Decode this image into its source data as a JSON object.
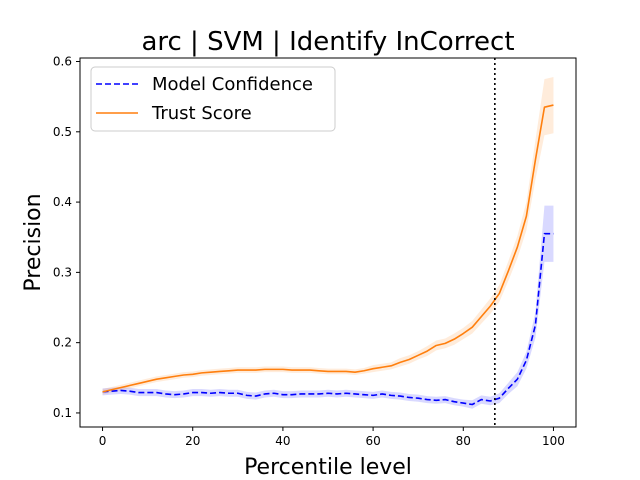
{
  "chart_data": {
    "type": "line",
    "title": "arc | SVM | Identify InCorrect",
    "xlabel": "Percentile level",
    "ylabel": "Precision",
    "xlim": [
      -5,
      105
    ],
    "ylim": [
      0.08,
      0.605
    ],
    "xticks": [
      0,
      20,
      40,
      60,
      80,
      100
    ],
    "yticks": [
      0.1,
      0.2,
      0.3,
      0.4,
      0.5,
      0.6
    ],
    "xtick_labels": [
      "0",
      "20",
      "40",
      "60",
      "80",
      "100"
    ],
    "ytick_labels": [
      "0.1",
      "0.2",
      "0.3",
      "0.4",
      "0.5",
      "0.6"
    ],
    "grid": false,
    "legend_position": "top-left",
    "vline": {
      "x": 87,
      "style": "dotted",
      "color": "#000000"
    },
    "x": [
      0,
      2,
      4,
      6,
      8,
      10,
      12,
      14,
      16,
      18,
      20,
      22,
      24,
      26,
      28,
      30,
      32,
      34,
      36,
      38,
      40,
      42,
      44,
      46,
      48,
      50,
      52,
      54,
      56,
      58,
      60,
      62,
      64,
      66,
      68,
      70,
      72,
      74,
      76,
      78,
      80,
      82,
      84,
      86,
      88,
      90,
      92,
      94,
      96,
      98,
      100
    ],
    "series": [
      {
        "name": "Model Confidence",
        "color": "#0000ff",
        "style": "dashed",
        "values": [
          0.13,
          0.131,
          0.132,
          0.131,
          0.129,
          0.129,
          0.129,
          0.127,
          0.126,
          0.127,
          0.129,
          0.129,
          0.128,
          0.129,
          0.128,
          0.128,
          0.125,
          0.124,
          0.127,
          0.128,
          0.126,
          0.126,
          0.127,
          0.127,
          0.127,
          0.128,
          0.127,
          0.128,
          0.127,
          0.126,
          0.125,
          0.127,
          0.125,
          0.124,
          0.122,
          0.121,
          0.119,
          0.118,
          0.119,
          0.116,
          0.114,
          0.112,
          0.119,
          0.117,
          0.121,
          0.135,
          0.148,
          0.175,
          0.225,
          0.355,
          0.355
        ],
        "band": [
          0.005,
          0.005,
          0.005,
          0.005,
          0.005,
          0.005,
          0.005,
          0.005,
          0.005,
          0.005,
          0.005,
          0.005,
          0.005,
          0.005,
          0.005,
          0.005,
          0.005,
          0.005,
          0.005,
          0.005,
          0.005,
          0.005,
          0.005,
          0.005,
          0.005,
          0.005,
          0.005,
          0.005,
          0.005,
          0.005,
          0.005,
          0.005,
          0.005,
          0.005,
          0.005,
          0.005,
          0.005,
          0.005,
          0.005,
          0.005,
          0.005,
          0.006,
          0.006,
          0.006,
          0.007,
          0.008,
          0.01,
          0.012,
          0.018,
          0.04,
          0.04
        ]
      },
      {
        "name": "Trust Score",
        "color": "#ff7f0e",
        "style": "solid",
        "values": [
          0.13,
          0.133,
          0.136,
          0.139,
          0.142,
          0.145,
          0.148,
          0.15,
          0.152,
          0.154,
          0.155,
          0.157,
          0.158,
          0.159,
          0.16,
          0.161,
          0.161,
          0.161,
          0.162,
          0.162,
          0.162,
          0.161,
          0.161,
          0.161,
          0.16,
          0.159,
          0.159,
          0.159,
          0.158,
          0.16,
          0.163,
          0.165,
          0.167,
          0.172,
          0.176,
          0.182,
          0.188,
          0.196,
          0.199,
          0.205,
          0.213,
          0.222,
          0.237,
          0.252,
          0.27,
          0.302,
          0.336,
          0.38,
          0.46,
          0.535,
          0.538
        ],
        "band": [
          0.004,
          0.004,
          0.004,
          0.004,
          0.004,
          0.004,
          0.004,
          0.004,
          0.004,
          0.004,
          0.004,
          0.004,
          0.004,
          0.004,
          0.004,
          0.004,
          0.004,
          0.004,
          0.004,
          0.004,
          0.004,
          0.004,
          0.004,
          0.004,
          0.004,
          0.004,
          0.004,
          0.004,
          0.004,
          0.004,
          0.005,
          0.005,
          0.005,
          0.006,
          0.006,
          0.006,
          0.007,
          0.007,
          0.007,
          0.008,
          0.008,
          0.009,
          0.01,
          0.011,
          0.012,
          0.014,
          0.016,
          0.02,
          0.028,
          0.04,
          0.04
        ]
      }
    ]
  }
}
